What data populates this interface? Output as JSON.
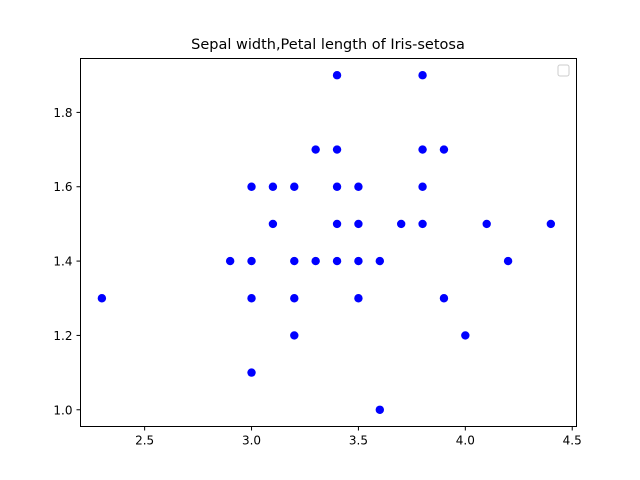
{
  "chart_data": {
    "type": "scatter",
    "title": "Sepal width,Petal length of Iris-setosa",
    "xlabel": "",
    "ylabel": "",
    "xlim": [
      2.2,
      4.52
    ],
    "ylim": [
      0.955,
      1.945
    ],
    "xticks": [
      "2.5",
      "3.0",
      "3.5",
      "4.0",
      "4.5"
    ],
    "yticks": [
      "1.0",
      "1.2",
      "1.4",
      "1.6",
      "1.8"
    ],
    "grid": false,
    "legend": {
      "placement": "top-right",
      "entries": []
    },
    "marker_color": "#0000ff",
    "series": [
      {
        "x": [
          3.4,
          3.8,
          3.3,
          3.4,
          3.8,
          3.9,
          3.0,
          3.1,
          3.2,
          3.4,
          3.5,
          3.8,
          3.1,
          3.4,
          3.5,
          3.7,
          3.8,
          4.1,
          4.4,
          2.9,
          3.0,
          3.2,
          3.3,
          3.4,
          3.5,
          3.6,
          4.2,
          2.3,
          3.0,
          3.2,
          3.5,
          3.9,
          3.2,
          4.0,
          3.0,
          3.6
        ],
        "y": [
          1.9,
          1.9,
          1.7,
          1.7,
          1.7,
          1.7,
          1.6,
          1.6,
          1.6,
          1.6,
          1.6,
          1.6,
          1.5,
          1.5,
          1.5,
          1.5,
          1.5,
          1.5,
          1.5,
          1.4,
          1.4,
          1.4,
          1.4,
          1.4,
          1.4,
          1.4,
          1.4,
          1.3,
          1.3,
          1.3,
          1.3,
          1.3,
          1.2,
          1.2,
          1.1,
          1.0
        ]
      }
    ]
  }
}
